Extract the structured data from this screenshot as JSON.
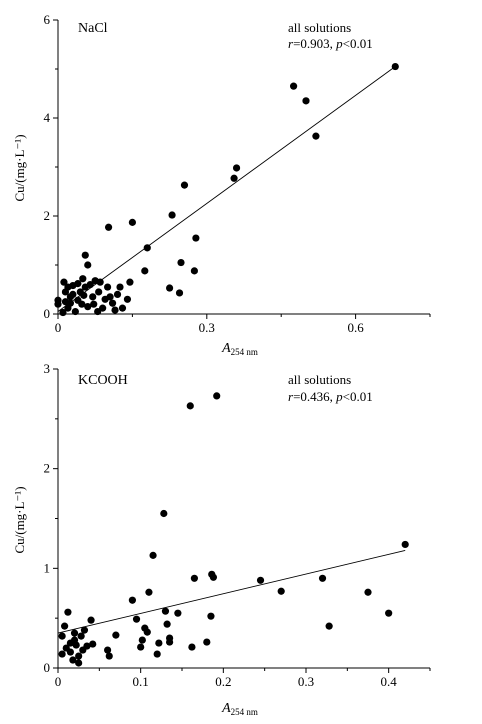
{
  "chart_data": [
    {
      "type": "scatter",
      "panel_label": "NaCl",
      "xlabel": {
        "main": "A",
        "sub": "254 nm"
      },
      "ylabel": "Cu/(mg·L⁻¹)",
      "xlim": [
        0,
        0.75
      ],
      "ylim": [
        0,
        6
      ],
      "xticks": [
        0,
        0.3,
        0.6
      ],
      "xtick_labels": [
        "0",
        "0.3",
        "0.6"
      ],
      "yticks": [
        0,
        2,
        4,
        6
      ],
      "ytick_labels": [
        "0",
        "2",
        "4",
        "6"
      ],
      "stats": {
        "line1": "all solutions",
        "r_label": "r",
        "r_value": "=0.903, ",
        "p_label": "p",
        "p_value": "<0.01"
      },
      "fit_line": {
        "x": [
          0.0,
          0.68
        ],
        "y": [
          0.05,
          5.05
        ]
      },
      "points": [
        [
          0.0,
          0.28
        ],
        [
          0.0,
          0.2
        ],
        [
          0.01,
          0.03
        ],
        [
          0.012,
          0.65
        ],
        [
          0.015,
          0.45
        ],
        [
          0.015,
          0.25
        ],
        [
          0.02,
          0.12
        ],
        [
          0.02,
          0.55
        ],
        [
          0.025,
          0.35
        ],
        [
          0.025,
          0.22
        ],
        [
          0.03,
          0.4
        ],
        [
          0.03,
          0.58
        ],
        [
          0.035,
          0.05
        ],
        [
          0.04,
          0.28
        ],
        [
          0.04,
          0.62
        ],
        [
          0.045,
          0.45
        ],
        [
          0.048,
          0.2
        ],
        [
          0.05,
          0.72
        ],
        [
          0.052,
          0.38
        ],
        [
          0.055,
          1.2
        ],
        [
          0.055,
          0.55
        ],
        [
          0.06,
          1.0
        ],
        [
          0.06,
          0.15
        ],
        [
          0.065,
          0.6
        ],
        [
          0.07,
          0.35
        ],
        [
          0.072,
          0.2
        ],
        [
          0.075,
          0.68
        ],
        [
          0.08,
          0.05
        ],
        [
          0.082,
          0.45
        ],
        [
          0.085,
          0.65
        ],
        [
          0.09,
          0.12
        ],
        [
          0.095,
          0.3
        ],
        [
          0.1,
          0.55
        ],
        [
          0.102,
          1.77
        ],
        [
          0.105,
          0.35
        ],
        [
          0.11,
          0.22
        ],
        [
          0.115,
          0.08
        ],
        [
          0.12,
          0.4
        ],
        [
          0.125,
          0.55
        ],
        [
          0.13,
          0.12
        ],
        [
          0.14,
          0.3
        ],
        [
          0.145,
          0.65
        ],
        [
          0.15,
          1.87
        ],
        [
          0.175,
          0.88
        ],
        [
          0.18,
          1.35
        ],
        [
          0.225,
          0.53
        ],
        [
          0.23,
          2.02
        ],
        [
          0.245,
          0.43
        ],
        [
          0.248,
          1.05
        ],
        [
          0.255,
          2.63
        ],
        [
          0.275,
          0.88
        ],
        [
          0.278,
          1.55
        ],
        [
          0.355,
          2.77
        ],
        [
          0.36,
          2.98
        ],
        [
          0.475,
          4.65
        ],
        [
          0.5,
          4.35
        ],
        [
          0.52,
          3.63
        ],
        [
          0.68,
          5.05
        ]
      ]
    },
    {
      "type": "scatter",
      "panel_label": "KCOOH",
      "xlabel": {
        "main": "A",
        "sub": "254 nm"
      },
      "ylabel": "Cu/(mg·L⁻¹)",
      "xlim": [
        0,
        0.45
      ],
      "ylim": [
        0,
        3
      ],
      "xticks": [
        0,
        0.1,
        0.2,
        0.3,
        0.4
      ],
      "xtick_labels": [
        "0",
        "0.1",
        "0.2",
        "0.3",
        "0.4"
      ],
      "yticks": [
        0,
        1,
        2,
        3
      ],
      "ytick_labels": [
        "0",
        "1",
        "2",
        "3"
      ],
      "stats": {
        "line1": "all solutions",
        "r_label": "r",
        "r_value": "=0.436, ",
        "p_label": "p",
        "p_value": "<0.01"
      },
      "fit_line": {
        "x": [
          0.0,
          0.42
        ],
        "y": [
          0.35,
          1.18
        ]
      },
      "points": [
        [
          0.005,
          0.32
        ],
        [
          0.005,
          0.14
        ],
        [
          0.008,
          0.42
        ],
        [
          0.01,
          0.2
        ],
        [
          0.012,
          0.56
        ],
        [
          0.015,
          0.25
        ],
        [
          0.015,
          0.16
        ],
        [
          0.018,
          0.08
        ],
        [
          0.02,
          0.35
        ],
        [
          0.02,
          0.28
        ],
        [
          0.022,
          0.23
        ],
        [
          0.025,
          0.12
        ],
        [
          0.025,
          0.05
        ],
        [
          0.028,
          0.32
        ],
        [
          0.03,
          0.18
        ],
        [
          0.032,
          0.38
        ],
        [
          0.035,
          0.22
        ],
        [
          0.04,
          0.48
        ],
        [
          0.042,
          0.24
        ],
        [
          0.06,
          0.18
        ],
        [
          0.062,
          0.12
        ],
        [
          0.07,
          0.33
        ],
        [
          0.09,
          0.68
        ],
        [
          0.095,
          0.49
        ],
        [
          0.1,
          0.21
        ],
        [
          0.102,
          0.28
        ],
        [
          0.105,
          0.4
        ],
        [
          0.108,
          0.36
        ],
        [
          0.11,
          0.76
        ],
        [
          0.115,
          1.13
        ],
        [
          0.12,
          0.14
        ],
        [
          0.122,
          0.25
        ],
        [
          0.128,
          1.55
        ],
        [
          0.13,
          0.57
        ],
        [
          0.132,
          0.44
        ],
        [
          0.135,
          0.26
        ],
        [
          0.135,
          0.3
        ],
        [
          0.145,
          0.55
        ],
        [
          0.16,
          2.63
        ],
        [
          0.162,
          0.21
        ],
        [
          0.165,
          0.9
        ],
        [
          0.18,
          0.26
        ],
        [
          0.185,
          0.52
        ],
        [
          0.186,
          0.94
        ],
        [
          0.188,
          0.91
        ],
        [
          0.192,
          2.73
        ],
        [
          0.245,
          0.88
        ],
        [
          0.27,
          0.77
        ],
        [
          0.32,
          0.9
        ],
        [
          0.328,
          0.42
        ],
        [
          0.375,
          0.76
        ],
        [
          0.4,
          0.55
        ],
        [
          0.42,
          1.24
        ]
      ]
    }
  ]
}
